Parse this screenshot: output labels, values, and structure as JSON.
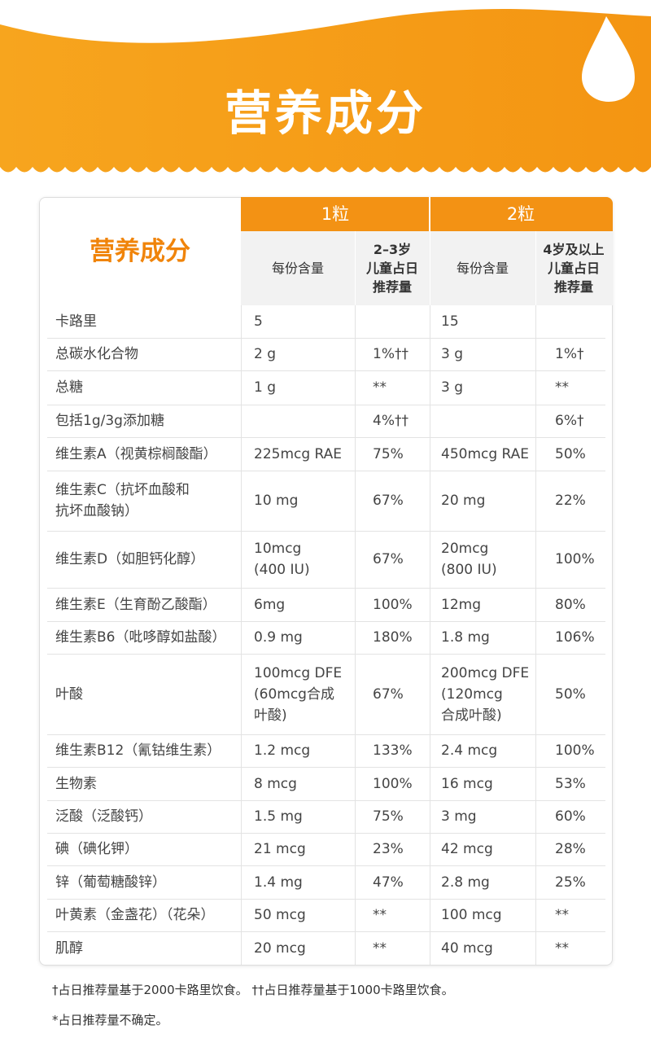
{
  "header": {
    "title": "营养成分"
  },
  "table": {
    "corner": "营养成分",
    "groups": [
      "1粒",
      "2粒"
    ],
    "subheaders": [
      "每份含量",
      "2–3岁\n儿童占日\n推荐量",
      "每份含量",
      "4岁及以上\n儿童占日\n推荐量"
    ],
    "rows": [
      [
        "卡路里",
        "5",
        null,
        "15",
        null
      ],
      [
        "总碳水化合物",
        "2 g",
        "1%††",
        "3 g",
        "1%†"
      ],
      [
        "总糖",
        "1 g",
        "**",
        "3 g",
        "**"
      ],
      [
        "包括1g/3g添加糖",
        null,
        "4%††",
        null,
        "6%†"
      ],
      [
        "维生素A（视黄棕榈酸酯）",
        "225mcg RAE",
        "75%",
        "450mcg RAE",
        "50%"
      ],
      [
        "维生素C（抗坏血酸和\n抗坏血酸钠）",
        "10 mg",
        "67%",
        "20 mg",
        "22%"
      ],
      [
        "维生素D（如胆钙化醇）",
        "10mcg\n(400 IU)",
        "67%",
        "20mcg\n(800 IU)",
        "100%"
      ],
      [
        "维生素E（生育酚乙酸酯）",
        "6mg",
        "100%",
        "12mg",
        "80%"
      ],
      [
        "维生素B6（吡哆醇如盐酸）",
        "0.9 mg",
        "180%",
        "1.8 mg",
        "106%"
      ],
      [
        "叶酸",
        "100mcg DFE\n(60mcg合成\n叶酸)",
        "67%",
        "200mcg DFE\n(120mcg\n合成叶酸)",
        "50%"
      ],
      [
        "维生素B12（氰钴维生素）",
        "1.2 mcg",
        "133%",
        "2.4 mcg",
        "100%"
      ],
      [
        "生物素",
        "8 mcg",
        "100%",
        "16 mcg",
        "53%"
      ],
      [
        "泛酸（泛酸钙）",
        "1.5 mg",
        "75%",
        "3 mg",
        "60%"
      ],
      [
        "碘（碘化钾）",
        "21 mcg",
        "23%",
        "42 mcg",
        "28%"
      ],
      [
        "锌（葡萄糖酸锌）",
        "1.4 mg",
        "47%",
        "2.8 mg",
        "25%"
      ],
      [
        "叶黄素（金盏花）（花朵）",
        "50 mcg",
        "**",
        "100 mcg",
        "**"
      ],
      [
        "肌醇",
        "20 mcg",
        "**",
        "40 mcg",
        "**"
      ]
    ]
  },
  "footnotes": [
    "†占日推荐量基于2000卡路里饮食。 ††占日推荐量基于1000卡路里饮食。",
    "*占日推荐量不确定。"
  ]
}
